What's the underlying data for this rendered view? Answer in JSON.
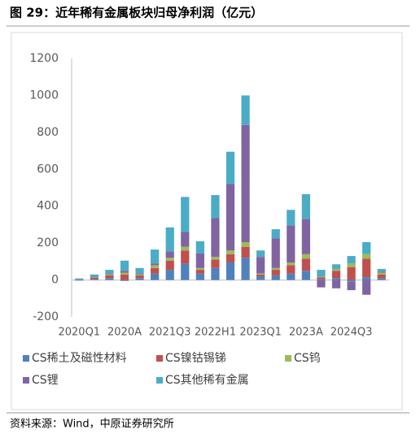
{
  "chart_data": {
    "type": "stacked_bar",
    "title": "图 29：近年稀有金属板块归母净利润（亿元）",
    "source": "资料来源：Wind，中原证券研究所",
    "categories": [
      "2020Q1",
      null,
      null,
      "2020A",
      null,
      null,
      "2021Q3",
      null,
      null,
      "2022H1",
      null,
      null,
      "2023Q1",
      null,
      null,
      "2023A",
      null,
      null,
      "2024Q3",
      null,
      null
    ],
    "series": [
      {
        "name": "CS稀土及磁性材料",
        "color": "#4f81bd",
        "values": [
          2,
          5,
          10,
          -5,
          10,
          35,
          55,
          90,
          35,
          65,
          95,
          120,
          20,
          25,
          35,
          50,
          5,
          10,
          -10,
          15,
          10
        ]
      },
      {
        "name": "CS镍钴锡锑",
        "color": "#c0504d",
        "values": [
          1,
          8,
          15,
          30,
          15,
          30,
          50,
          70,
          20,
          45,
          45,
          60,
          10,
          30,
          45,
          65,
          10,
          40,
          70,
          100,
          20
        ]
      },
      {
        "name": "CS钨",
        "color": "#9bbb59",
        "values": [
          1,
          3,
          5,
          10,
          5,
          15,
          15,
          20,
          10,
          15,
          20,
          25,
          5,
          10,
          15,
          25,
          5,
          10,
          20,
          25,
          10
        ]
      },
      {
        "name": "CS锂",
        "color": "#8064a2",
        "values": [
          -3,
          2,
          5,
          10,
          5,
          10,
          35,
          80,
          80,
          210,
          360,
          635,
          90,
          160,
          200,
          190,
          -40,
          -45,
          -45,
          -80,
          5
        ]
      },
      {
        "name": "CS其他稀有金属",
        "color": "#4bacc6",
        "values": [
          5,
          12,
          20,
          55,
          30,
          75,
          130,
          190,
          65,
          125,
          175,
          160,
          35,
          50,
          85,
          135,
          35,
          25,
          40,
          65,
          15
        ]
      }
    ],
    "ylim": [
      -200,
      1200
    ],
    "yticks": [
      -200,
      0,
      200,
      400,
      600,
      800,
      1000,
      1200
    ]
  }
}
